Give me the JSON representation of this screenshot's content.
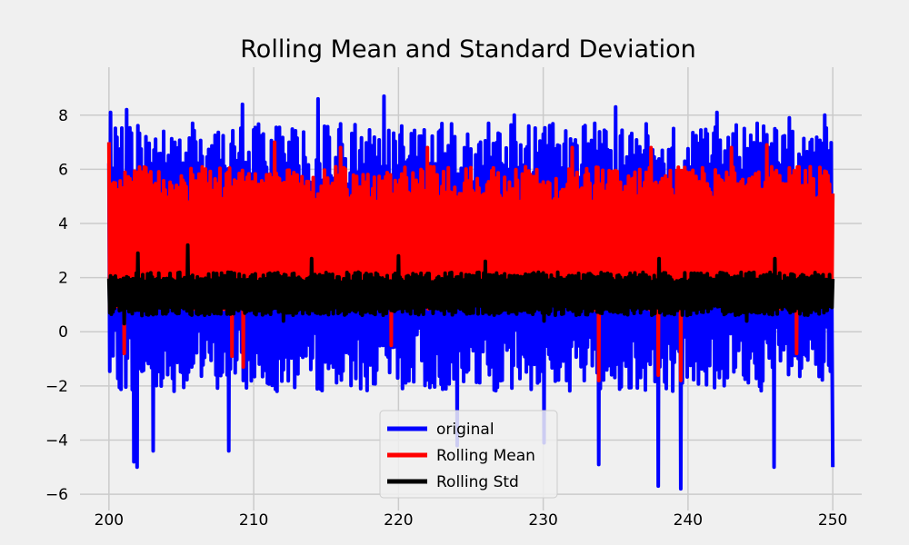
{
  "chart_data": {
    "type": "line",
    "title": "Rolling Mean and Standard Deviation",
    "xlabel": "",
    "ylabel": "",
    "xlim": [
      198,
      252
    ],
    "ylim": [
      -6.6,
      9.3
    ],
    "x_range": [
      200,
      250
    ],
    "xticks": [
      200,
      210,
      220,
      230,
      240,
      250
    ],
    "yticks": [
      -6,
      -4,
      -2,
      0,
      2,
      4,
      6,
      8
    ],
    "grid": true,
    "legend_position": "bottom-center",
    "series": [
      {
        "name": "original",
        "color": "#0000ff",
        "band": {
          "low": -2.2,
          "high": 7.7
        },
        "peaks_high": [
          [
            200.1,
            8.1
          ],
          [
            201.3,
            8.2
          ],
          [
            209.2,
            8.4
          ],
          [
            214.5,
            8.6
          ],
          [
            219.0,
            8.7
          ],
          [
            228.0,
            8.0
          ],
          [
            235.0,
            8.3
          ],
          [
            242.0,
            8.1
          ],
          [
            247.0,
            7.9
          ],
          [
            249.5,
            8.0
          ]
        ],
        "peaks_low": [
          [
            201.7,
            -4.8
          ],
          [
            201.9,
            -5.0
          ],
          [
            203.0,
            -4.4
          ],
          [
            208.2,
            -4.4
          ],
          [
            224.0,
            -4.2
          ],
          [
            230.0,
            -4.1
          ],
          [
            233.8,
            -4.9
          ],
          [
            237.9,
            -5.7
          ],
          [
            239.5,
            -5.8
          ],
          [
            245.9,
            -5.0
          ],
          [
            250.0,
            -5.0
          ]
        ]
      },
      {
        "name": "Rolling Mean",
        "color": "#ff0000",
        "band": {
          "low": 0.8,
          "high": 6.1
        },
        "peaks_high": [
          [
            200.0,
            7.0
          ],
          [
            211.5,
            7.0
          ],
          [
            216.0,
            6.8
          ],
          [
            222.0,
            6.8
          ],
          [
            232.0,
            6.8
          ],
          [
            237.5,
            6.8
          ],
          [
            243.0,
            6.8
          ],
          [
            245.5,
            6.9
          ]
        ],
        "peaks_low": [
          [
            201.0,
            -0.8
          ],
          [
            208.5,
            -0.9
          ],
          [
            209.3,
            -1.3
          ],
          [
            219.5,
            -0.5
          ],
          [
            233.8,
            -1.8
          ],
          [
            237.9,
            -1.6
          ],
          [
            239.5,
            -1.8
          ],
          [
            247.5,
            -0.8
          ]
        ]
      },
      {
        "name": "Rolling Std",
        "color": "#000000",
        "band": {
          "low": 0.6,
          "high": 2.2
        },
        "peaks_high": [
          [
            202.0,
            2.9
          ],
          [
            205.5,
            3.2
          ],
          [
            214.0,
            2.7
          ],
          [
            220.0,
            2.8
          ],
          [
            226.0,
            2.6
          ],
          [
            238.0,
            2.7
          ],
          [
            246.0,
            2.7
          ]
        ],
        "peaks_low": [
          [
            201.0,
            0.3
          ],
          [
            212.0,
            0.4
          ],
          [
            230.0,
            0.4
          ],
          [
            244.0,
            0.4
          ]
        ]
      }
    ]
  },
  "legend": {
    "entries": [
      "original",
      "Rolling Mean",
      "Rolling Std"
    ]
  }
}
